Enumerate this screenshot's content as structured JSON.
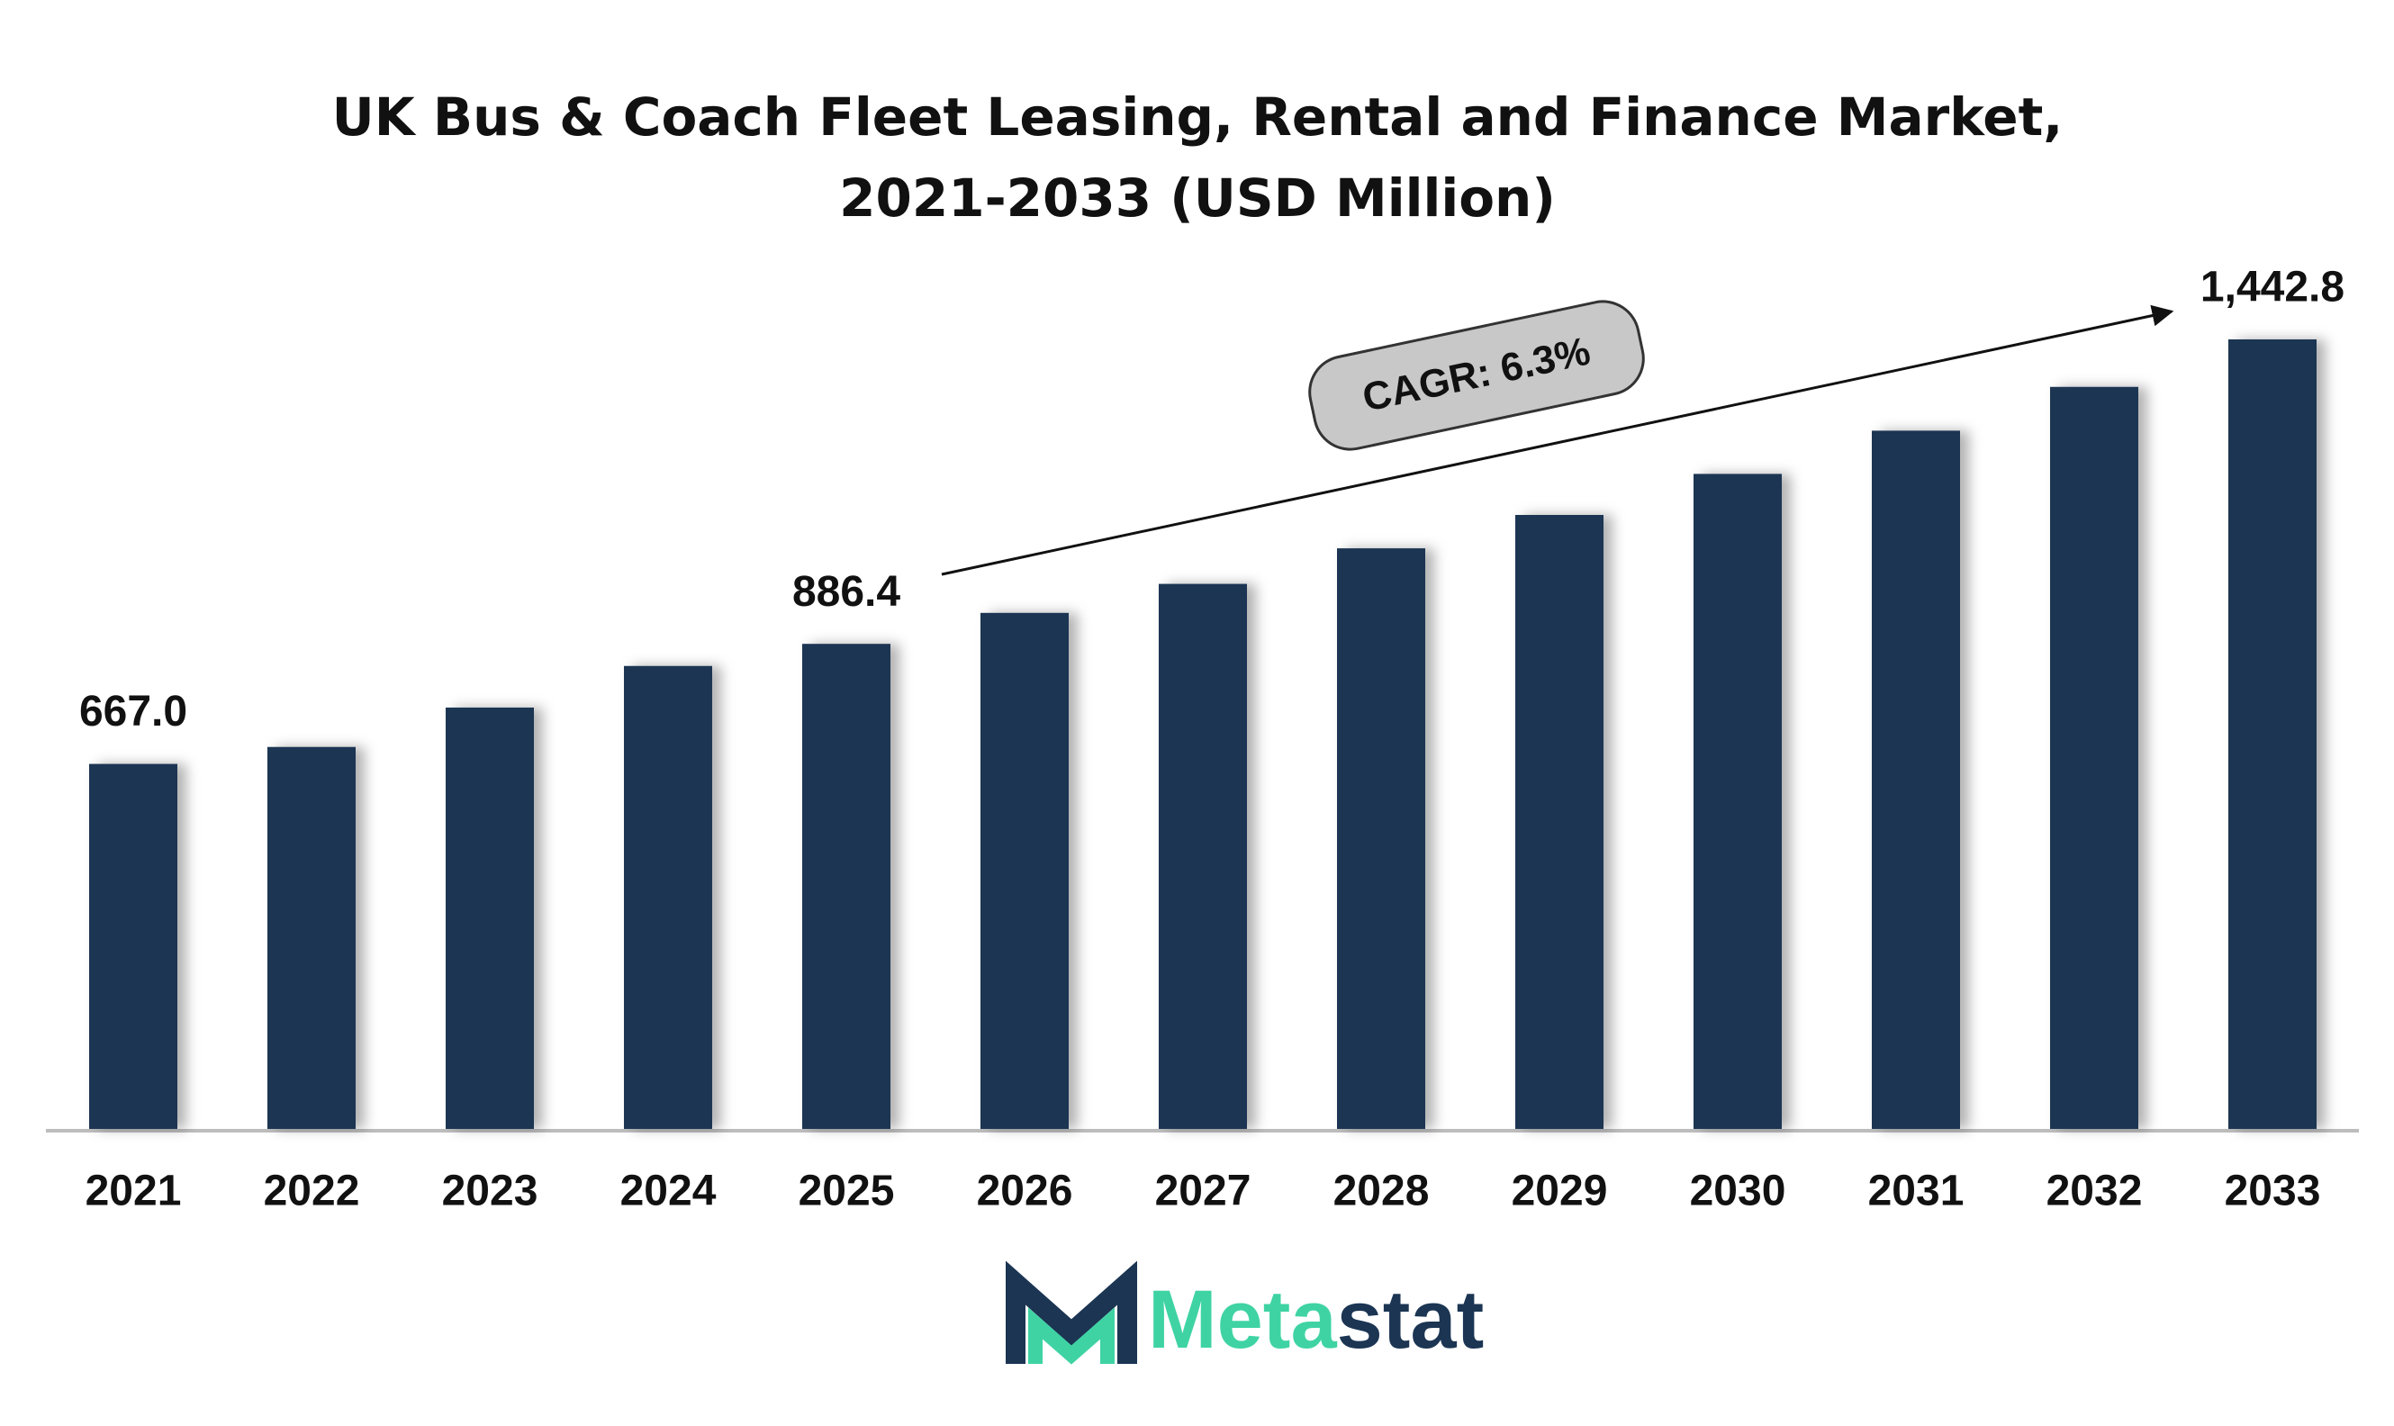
{
  "chart_data": {
    "type": "bar",
    "title": "UK Bus & Coach Fleet Leasing, Rental and Finance Market, 2021-2033 (USD Million)",
    "categories": [
      "2021",
      "2022",
      "2023",
      "2024",
      "2025",
      "2026",
      "2027",
      "2028",
      "2029",
      "2030",
      "2031",
      "2032",
      "2033"
    ],
    "values": [
      667,
      698,
      770,
      846,
      886.4,
      943,
      996,
      1061,
      1122,
      1197,
      1276,
      1356,
      1442.8
    ],
    "value_labels": [
      "667.0",
      null,
      null,
      null,
      "886.4",
      null,
      null,
      null,
      null,
      null,
      null,
      null,
      "1,442.8"
    ],
    "color": "#1b3553",
    "annotation": "CAGR: 6.3%"
  },
  "logo": {
    "part1": "Meta",
    "part2": "stat"
  }
}
